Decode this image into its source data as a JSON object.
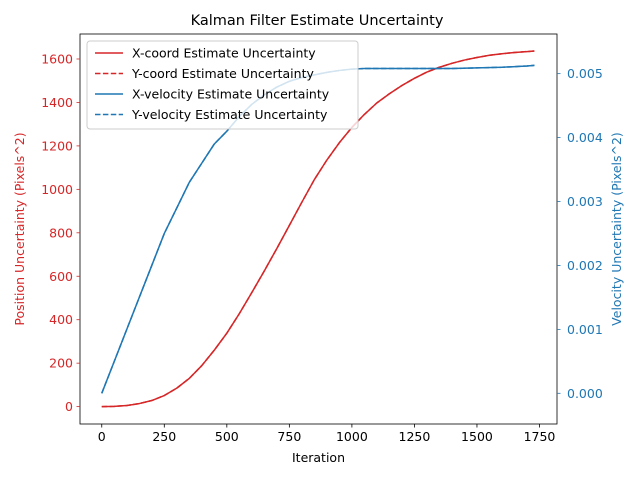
{
  "chart_data": {
    "type": "line",
    "title": "Kalman Filter Estimate Uncertainty",
    "xlabel": "Iteration",
    "ylabel_left": "Position Uncertainty (Pixels^2)",
    "ylabel_right": "Velocity Uncertainty (Pixels^2)",
    "xlim": [
      -87,
      1820
    ],
    "ylim_left": [
      -80,
      1715
    ],
    "ylim_right": [
      -0.00048,
      0.00562
    ],
    "xticks": [
      0,
      250,
      500,
      750,
      1000,
      1250,
      1500,
      1750
    ],
    "yticks_left": [
      0,
      200,
      400,
      600,
      800,
      1000,
      1200,
      1400,
      1600
    ],
    "yticks_right": [
      0.0,
      0.001,
      0.002,
      0.003,
      0.004,
      0.005
    ],
    "yticks_right_labels": [
      "0.000",
      "0.001",
      "0.002",
      "0.003",
      "0.004",
      "0.005"
    ],
    "grid": false,
    "legend_position": "upper-left",
    "left_axis_color": "#d62728",
    "right_axis_color": "#1f77b4",
    "series": [
      {
        "name": "X-coord Estimate Uncertainty",
        "axis": "left",
        "color": "#d62728",
        "dash": "solid",
        "x": [
          0,
          50,
          100,
          150,
          200,
          250,
          300,
          350,
          400,
          450,
          500,
          550,
          600,
          650,
          700,
          750,
          800,
          850,
          900,
          950,
          1000,
          1050,
          1100,
          1150,
          1200,
          1250,
          1300,
          1350,
          1400,
          1450,
          1500,
          1550,
          1600,
          1650,
          1700,
          1730
        ],
        "y": [
          0,
          1,
          5,
          14,
          28,
          51,
          85,
          130,
          189,
          260,
          338,
          428,
          525,
          625,
          728,
          834,
          941,
          1045,
          1135,
          1215,
          1285,
          1345,
          1398,
          1440,
          1478,
          1511,
          1540,
          1562,
          1580,
          1595,
          1607,
          1617,
          1624,
          1630,
          1634,
          1637
        ]
      },
      {
        "name": "Y-coord Estimate Uncertainty",
        "axis": "left",
        "color": "#d62728",
        "dash": "dashed",
        "x": [
          0,
          50,
          100,
          150,
          200,
          250,
          300,
          350,
          400,
          450,
          500,
          550,
          600,
          650,
          700,
          750,
          800,
          850,
          900,
          950,
          1000,
          1050,
          1100,
          1150,
          1200,
          1250,
          1300,
          1350,
          1400,
          1450,
          1500,
          1550,
          1600,
          1650,
          1700,
          1730
        ],
        "y": [
          0,
          1,
          5,
          14,
          28,
          51,
          85,
          130,
          189,
          260,
          338,
          428,
          525,
          625,
          728,
          834,
          941,
          1045,
          1135,
          1215,
          1285,
          1345,
          1398,
          1440,
          1478,
          1511,
          1540,
          1562,
          1580,
          1595,
          1607,
          1617,
          1624,
          1630,
          1634,
          1637
        ]
      },
      {
        "name": "X-velocity Estimate Uncertainty",
        "axis": "right",
        "color": "#1f77b4",
        "dash": "solid",
        "x": [
          0,
          50,
          100,
          150,
          200,
          250,
          300,
          350,
          400,
          450,
          500,
          550,
          600,
          650,
          700,
          750,
          800,
          850,
          900,
          950,
          1000,
          1050,
          1100,
          1200,
          1300,
          1400,
          1500,
          1600,
          1700,
          1730
        ],
        "y": [
          0.0,
          0.0005,
          0.001,
          0.0015,
          0.002,
          0.0025,
          0.0029,
          0.0033,
          0.0036,
          0.0039,
          0.0041,
          0.00433,
          0.00452,
          0.00467,
          0.00479,
          0.00488,
          0.00494,
          0.00498,
          0.00502,
          0.00505,
          0.00507,
          0.00508,
          0.00508,
          0.00508,
          0.00508,
          0.00508,
          0.00509,
          0.0051,
          0.00512,
          0.00513
        ]
      },
      {
        "name": "Y-velocity Estimate Uncertainty",
        "axis": "right",
        "color": "#1f77b4",
        "dash": "dashed",
        "x": [
          0,
          50,
          100,
          150,
          200,
          250,
          300,
          350,
          400,
          450,
          500,
          550,
          600,
          650,
          700,
          750,
          800,
          850,
          900,
          950,
          1000,
          1050,
          1100,
          1200,
          1300,
          1400,
          1500,
          1600,
          1700,
          1730
        ],
        "y": [
          0.0,
          0.0005,
          0.001,
          0.0015,
          0.002,
          0.0025,
          0.0029,
          0.0033,
          0.0036,
          0.0039,
          0.0041,
          0.00433,
          0.00452,
          0.00467,
          0.00479,
          0.00488,
          0.00494,
          0.00498,
          0.00502,
          0.00505,
          0.00507,
          0.00508,
          0.00508,
          0.00508,
          0.00508,
          0.00508,
          0.00509,
          0.0051,
          0.00512,
          0.00513
        ]
      }
    ]
  }
}
